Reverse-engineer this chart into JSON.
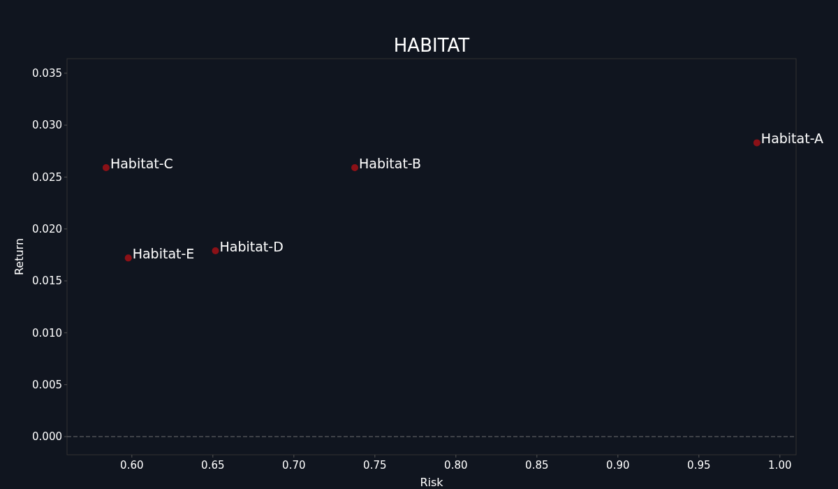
{
  "chart_data": {
    "type": "scatter",
    "title": "HABITAT",
    "xlabel": "Risk",
    "ylabel": "Return",
    "x": [
      0.9858,
      0.7376,
      0.5841,
      0.6516,
      0.5978
    ],
    "values": [
      0.0283,
      0.0259,
      0.0259,
      0.0179,
      0.0172
    ],
    "color": "#8b1117",
    "marker": "circle",
    "annotations": [
      {
        "text": "Habitat-A",
        "x": 0.9858,
        "y": 0.0283
      },
      {
        "text": "Habitat-B",
        "x": 0.7376,
        "y": 0.0259
      },
      {
        "text": "Habitat-C",
        "x": 0.5841,
        "y": 0.0259
      },
      {
        "text": "Habitat-D",
        "x": 0.6516,
        "y": 0.0179
      },
      {
        "text": "Habitat-E",
        "x": 0.5978,
        "y": 0.0172
      }
    ],
    "ref_lines": [
      {
        "axis": "y",
        "value": 0,
        "color": "#888888",
        "line_style": "dashed"
      }
    ],
    "xlim": [
      0.56,
      1.01
    ],
    "xticks": [
      {
        "value": 0.6,
        "label": "0.60"
      },
      {
        "value": 0.65,
        "label": "0.65"
      },
      {
        "value": 0.7,
        "label": "0.70"
      },
      {
        "value": 0.75,
        "label": "0.75"
      },
      {
        "value": 0.8,
        "label": "0.80"
      },
      {
        "value": 0.85,
        "label": "0.85"
      },
      {
        "value": 0.9,
        "label": "0.90"
      },
      {
        "value": 0.95,
        "label": "0.95"
      },
      {
        "value": 1.0,
        "label": "1.00"
      }
    ],
    "ylim": [
      -0.00175,
      0.0364
    ],
    "yticks": [
      {
        "value": 0,
        "label": "0.000"
      },
      {
        "value": 0.005,
        "label": "0.005"
      },
      {
        "value": 0.01,
        "label": "0.010"
      },
      {
        "value": 0.015,
        "label": "0.015"
      },
      {
        "value": 0.02,
        "label": "0.020"
      },
      {
        "value": 0.025,
        "label": "0.025"
      },
      {
        "value": 0.03,
        "label": "0.030"
      },
      {
        "value": 0.035,
        "label": "0.035"
      }
    ],
    "grid": false
  }
}
